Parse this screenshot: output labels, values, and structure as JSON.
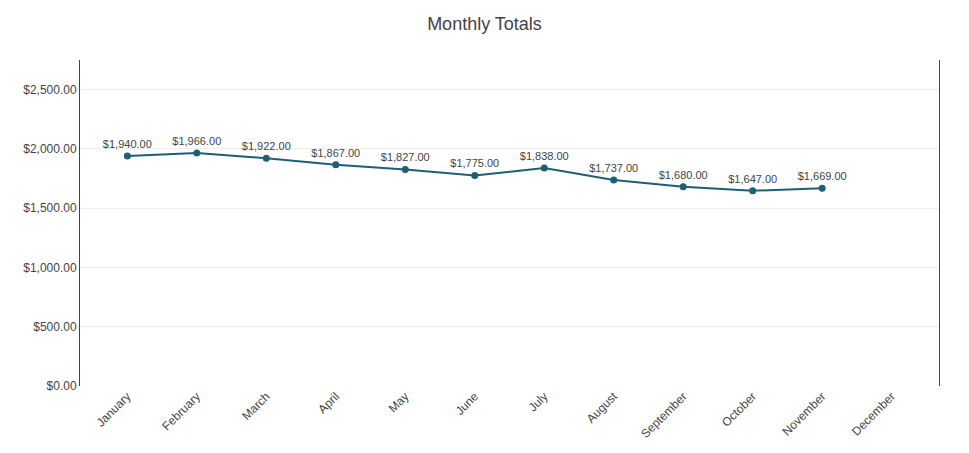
{
  "chart_data": {
    "type": "line",
    "title": "Monthly Totals",
    "categories": [
      "January",
      "February",
      "March",
      "April",
      "May",
      "June",
      "July",
      "August",
      "September",
      "October",
      "November",
      "December"
    ],
    "values": [
      1940,
      1966,
      1922,
      1867,
      1827,
      1775,
      1838,
      1737,
      1680,
      1647,
      1669,
      null
    ],
    "value_labels": [
      "$1,940.00",
      "$1,966.00",
      "$1,922.00",
      "$1,867.00",
      "$1,827.00",
      "$1,775.00",
      "$1,838.00",
      "$1,737.00",
      "$1,680.00",
      "$1,647.00",
      "$1,669.00",
      null
    ],
    "data_labels": true,
    "color": "#1F5F73",
    "marker": "circle",
    "line_style": "solid",
    "ylim": [
      0,
      2750
    ],
    "yticks": [
      {
        "value": 0,
        "label": "$0.00"
      },
      {
        "value": 500,
        "label": "$500.00"
      },
      {
        "value": 1000,
        "label": "$1,000.00"
      },
      {
        "value": 1500,
        "label": "$1,500.00"
      },
      {
        "value": 2000,
        "label": "$2,000.00"
      },
      {
        "value": 2500,
        "label": "$2,500.00"
      }
    ],
    "grid": true
  }
}
